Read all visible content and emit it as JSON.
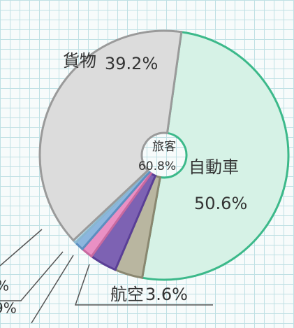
{
  "chart_data": {
    "type": "pie",
    "center_label": "旅客",
    "center_value": 60.8,
    "center_value_label": "60.8%",
    "categories": [
      "自動車",
      "航空",
      null,
      null,
      null,
      null,
      "貨物"
    ],
    "values": [
      50.6,
      3.6,
      3.5,
      1.5,
      1.2,
      0.4,
      39.2
    ],
    "value_labels": [
      "50.6%",
      "3.6%",
      null,
      null,
      null,
      null,
      "39.2%"
    ],
    "colors": [
      "#d6f2e6",
      "#b9b6a0",
      "#7d62b3",
      "#ea90c4",
      "#8cb6de",
      "#bcdcea",
      "#dcdcdc"
    ],
    "annotations": [
      "%",
      "9%"
    ]
  }
}
